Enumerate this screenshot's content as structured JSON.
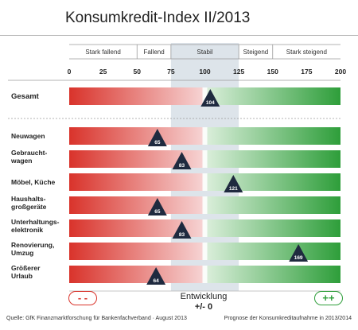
{
  "title": "Konsumkredit-Index II/2013",
  "chart_data": {
    "type": "bar",
    "xlim": [
      0,
      200
    ],
    "ticks": [
      0,
      25,
      50,
      75,
      100,
      125,
      150,
      175,
      200
    ],
    "zones": [
      {
        "label": "Stark fallend",
        "from": 0,
        "to": 50
      },
      {
        "label": "Fallend",
        "from": 50,
        "to": 75
      },
      {
        "label": "Stabil",
        "from": 75,
        "to": 125
      },
      {
        "label": "Steigend",
        "from": 125,
        "to": 150
      },
      {
        "label": "Stark steigend",
        "from": 150,
        "to": 200
      }
    ],
    "stable_band": [
      75,
      125
    ],
    "overall": {
      "label": "Gesamt",
      "value": 104
    },
    "categories": [
      {
        "label": "Neuwagen",
        "value": 65
      },
      {
        "label": "Gebraucht-\nwagen",
        "value": 83
      },
      {
        "label": "Möbel, Küche",
        "value": 121
      },
      {
        "label": "Haushalts-\ngroßgeräte",
        "value": 65
      },
      {
        "label": "Unterhaltungs-\nelektronik",
        "value": 83
      },
      {
        "label": "Renovierung,\nUmzug",
        "value": 169
      },
      {
        "label": "Größerer\nUrlaub",
        "value": 64
      }
    ],
    "colors": {
      "negative": "#d9332b",
      "positive": "#2e9e3a",
      "band": "#dde4ea",
      "marker": "#1f2a3f"
    }
  },
  "legend": {
    "negative_symbol": "- -",
    "positive_symbol": "++",
    "development_label": "Entwicklung",
    "development_value": "+/- 0"
  },
  "footer": {
    "source": "Quelle: GfK Finanzmarktforschung für Bankenfachverband · August 2013",
    "note": "Prognose der Konsumkreditaufnahme in 2013/2014"
  }
}
